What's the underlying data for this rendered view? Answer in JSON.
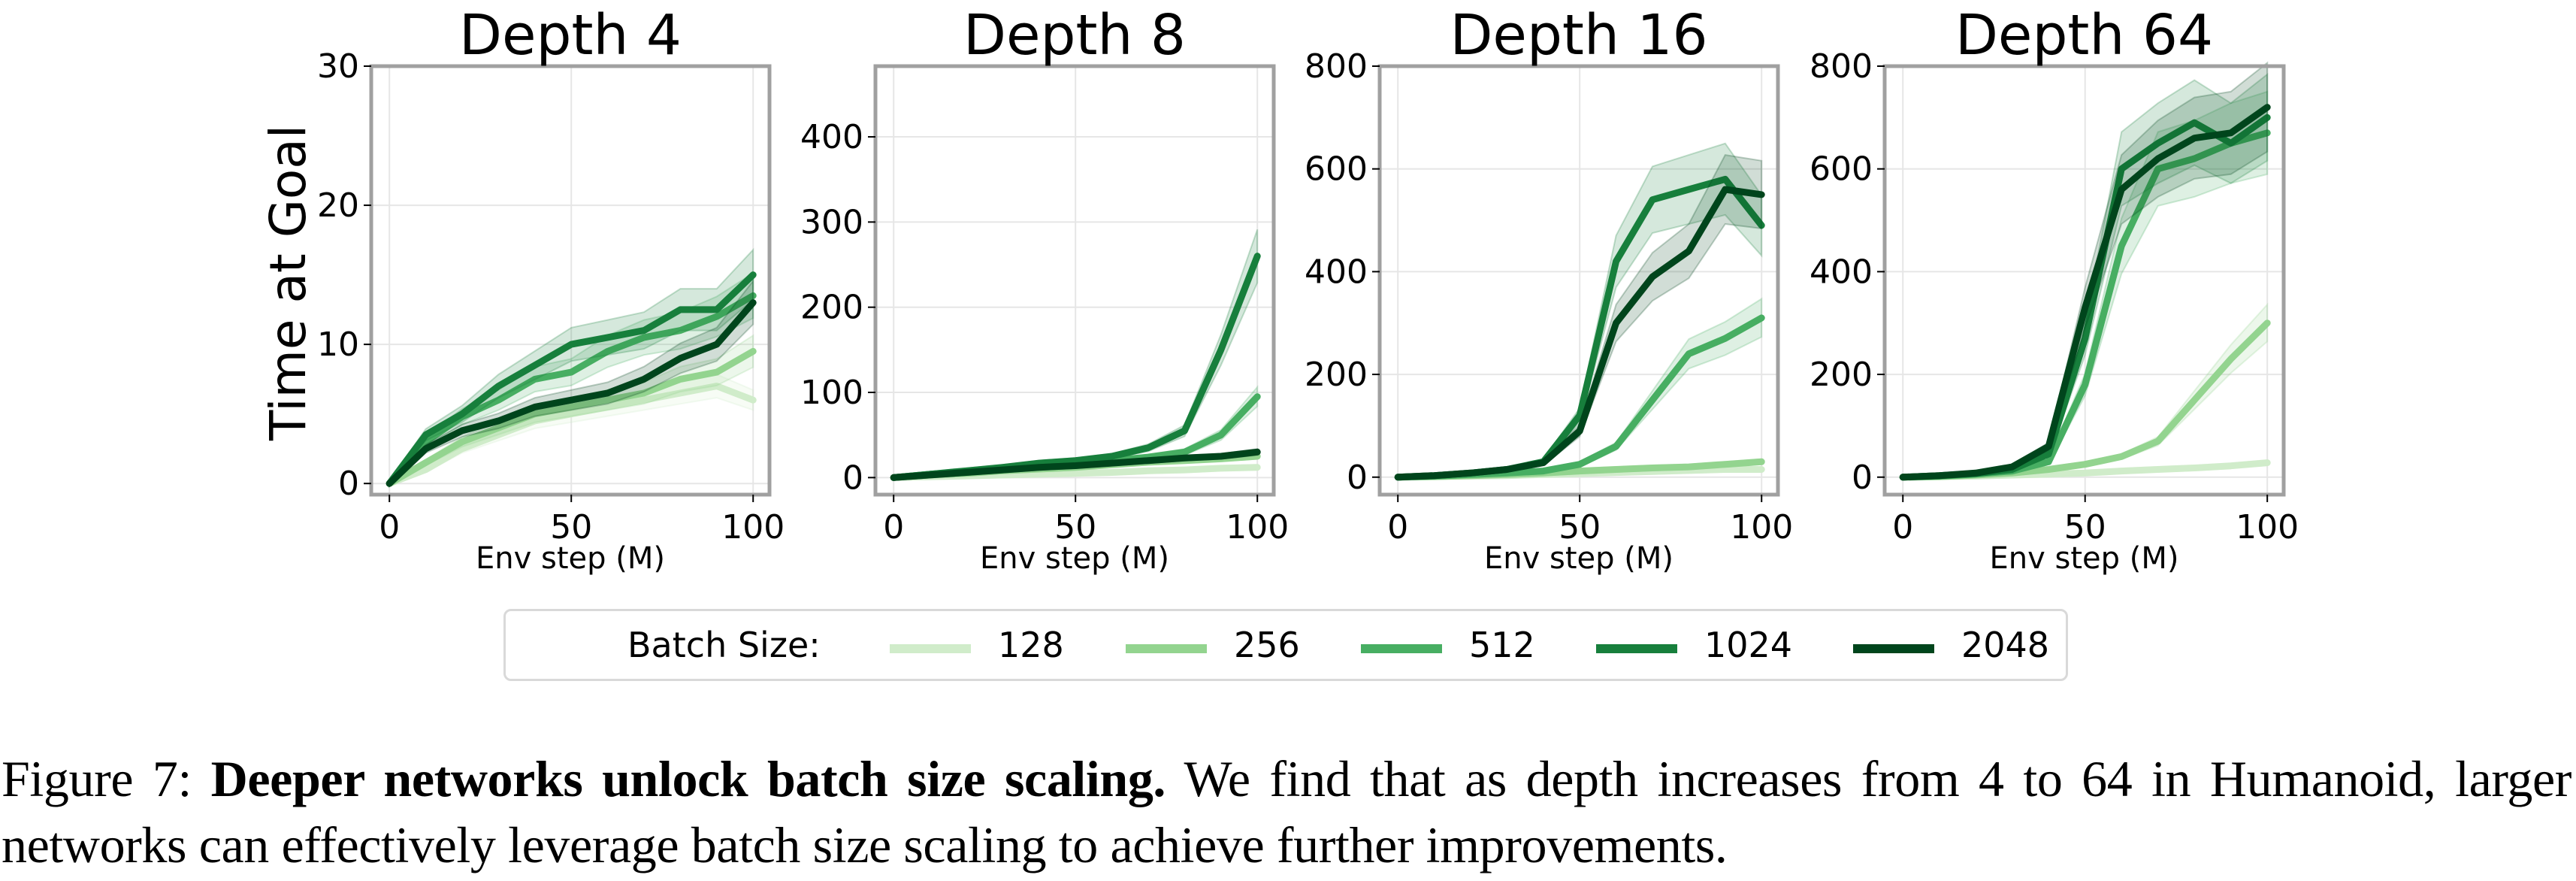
{
  "figure": {
    "ylabel": "Time at Goal",
    "legend": {
      "title": "Batch Size:",
      "entries": [
        {
          "label": "128",
          "color": "#d0ecca"
        },
        {
          "label": "256",
          "color": "#93d48f"
        },
        {
          "label": "512",
          "color": "#47ae62"
        },
        {
          "label": "1024",
          "color": "#177f3c"
        },
        {
          "label": "2048",
          "color": "#00451c"
        }
      ]
    },
    "caption": {
      "prefix": "Figure 7:",
      "bold": "Deeper networks unlock batch size scaling.",
      "text": "We find that as depth increases from 4 to 64 in Humanoid, larger networks can effectively leverage batch size scaling to achieve further improvements."
    }
  },
  "chart_data": [
    {
      "type": "line",
      "title": "Depth 4",
      "xlabel": "Env step (M)",
      "ylabel": "Time at Goal",
      "xlim": [
        -5,
        104.5
      ],
      "ylim": [
        -0.8,
        30
      ],
      "xticks": [
        0,
        50,
        100
      ],
      "yticks": [
        0,
        10,
        20,
        30
      ],
      "grid": true,
      "x": [
        0,
        10,
        20,
        30,
        40,
        50,
        60,
        70,
        80,
        90,
        100
      ],
      "series": [
        {
          "name": "128",
          "values": [
            0,
            1.0,
            2.5,
            3.5,
            4.5,
            5.0,
            5.5,
            6.0,
            6.5,
            7.0,
            6.0
          ]
        },
        {
          "name": "256",
          "values": [
            0,
            1.5,
            3.0,
            4.0,
            5.0,
            5.5,
            6.0,
            6.5,
            7.5,
            8.0,
            9.5
          ]
        },
        {
          "name": "512",
          "values": [
            0,
            3.0,
            4.8,
            6.0,
            7.5,
            8.0,
            9.5,
            10.5,
            11.0,
            12.0,
            13.5
          ]
        },
        {
          "name": "1024",
          "values": [
            0,
            3.5,
            5.0,
            7.0,
            8.5,
            10.0,
            10.5,
            11.0,
            12.5,
            12.5,
            15.0
          ]
        },
        {
          "name": "2048",
          "values": [
            0,
            2.5,
            3.8,
            4.5,
            5.5,
            6.0,
            6.5,
            7.5,
            9.0,
            10.0,
            13.0
          ]
        }
      ]
    },
    {
      "type": "line",
      "title": "Depth 8",
      "xlabel": "Env step (M)",
      "ylabel": "",
      "xlim": [
        -5,
        104.5
      ],
      "ylim": [
        -20,
        483
      ],
      "xticks": [
        0,
        50,
        100
      ],
      "yticks": [
        0,
        100,
        200,
        300,
        400
      ],
      "grid": true,
      "x": [
        0,
        10,
        20,
        30,
        40,
        50,
        60,
        70,
        80,
        90,
        100
      ],
      "series": [
        {
          "name": "128",
          "values": [
            0,
            1,
            2,
            3,
            4,
            5,
            6,
            8,
            9,
            11,
            12
          ]
        },
        {
          "name": "256",
          "values": [
            0,
            3,
            5,
            8,
            10,
            12,
            15,
            18,
            20,
            22,
            25
          ]
        },
        {
          "name": "512",
          "values": [
            0,
            4,
            7,
            10,
            14,
            18,
            20,
            24,
            30,
            50,
            95
          ]
        },
        {
          "name": "1024",
          "values": [
            0,
            4,
            8,
            12,
            17,
            20,
            25,
            35,
            55,
            150,
            260
          ]
        },
        {
          "name": "2048",
          "values": [
            0,
            3,
            6,
            9,
            12,
            14,
            17,
            20,
            23,
            25,
            30
          ]
        }
      ]
    },
    {
      "type": "line",
      "title": "Depth 16",
      "xlabel": "Env step (M)",
      "ylabel": "",
      "xlim": [
        -5,
        104.5
      ],
      "ylim": [
        -34,
        800
      ],
      "xticks": [
        0,
        50,
        100
      ],
      "yticks": [
        0,
        200,
        400,
        600,
        800
      ],
      "grid": true,
      "x": [
        0,
        10,
        20,
        30,
        40,
        50,
        60,
        70,
        80,
        90,
        100
      ],
      "series": [
        {
          "name": "128",
          "values": [
            0,
            1,
            2,
            3,
            5,
            7,
            9,
            11,
            13,
            15,
            15
          ]
        },
        {
          "name": "256",
          "values": [
            0,
            1,
            3,
            5,
            8,
            12,
            15,
            18,
            20,
            25,
            30
          ]
        },
        {
          "name": "512",
          "values": [
            0,
            2,
            5,
            8,
            12,
            25,
            60,
            150,
            240,
            270,
            310
          ]
        },
        {
          "name": "1024",
          "values": [
            0,
            3,
            8,
            15,
            30,
            120,
            420,
            540,
            560,
            580,
            490
          ]
        },
        {
          "name": "2048",
          "values": [
            0,
            3,
            8,
            15,
            28,
            90,
            300,
            390,
            440,
            560,
            550
          ]
        }
      ]
    },
    {
      "type": "line",
      "title": "Depth 64",
      "xlabel": "Env step (M)",
      "ylabel": "",
      "xlim": [
        -5,
        104.5
      ],
      "ylim": [
        -34,
        800
      ],
      "xticks": [
        0,
        50,
        100
      ],
      "yticks": [
        0,
        200,
        400,
        600,
        800
      ],
      "grid": true,
      "x": [
        0,
        10,
        20,
        30,
        40,
        50,
        60,
        70,
        80,
        90,
        100
      ],
      "series": [
        {
          "name": "128",
          "values": [
            0,
            1,
            2,
            4,
            6,
            8,
            12,
            15,
            18,
            22,
            28
          ]
        },
        {
          "name": "256",
          "values": [
            0,
            1,
            4,
            8,
            15,
            25,
            40,
            70,
            150,
            230,
            300
          ]
        },
        {
          "name": "512",
          "values": [
            0,
            2,
            6,
            12,
            30,
            180,
            450,
            600,
            620,
            650,
            670
          ]
        },
        {
          "name": "1024",
          "values": [
            0,
            3,
            7,
            15,
            45,
            270,
            600,
            650,
            690,
            650,
            700
          ]
        },
        {
          "name": "2048",
          "values": [
            0,
            3,
            8,
            20,
            60,
            330,
            560,
            620,
            660,
            670,
            720
          ]
        }
      ]
    }
  ]
}
